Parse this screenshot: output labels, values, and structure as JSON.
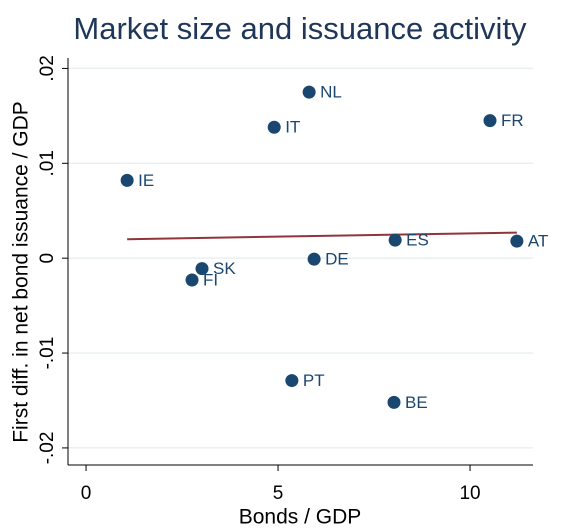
{
  "chart_data": {
    "type": "scatter",
    "title": "Market size and issuance activity",
    "x_label": "Bonds / GDP",
    "y_label": "First diff. in net bond issuance / GDP",
    "labels": [
      "NL",
      "IT",
      "FR",
      "IE",
      "ES",
      "AT",
      "DE",
      "SK",
      "FI",
      "PT",
      "BE"
    ],
    "x": [
      5.81,
      4.9,
      10.52,
      1.07,
      8.05,
      11.22,
      5.94,
      3.02,
      2.76,
      5.36,
      8.02
    ],
    "values": [
      0.0175,
      0.0138,
      0.0145,
      0.0082,
      0.0019,
      0.0018,
      -0.0001,
      -0.0011,
      -0.0023,
      -0.0129,
      -0.0152
    ],
    "color": "#1a476f",
    "fit": {
      "x": [
        1.07,
        11.22
      ],
      "values": [
        0.002,
        0.0027
      ],
      "color": "#90353b"
    },
    "xlim": [
      -0.47,
      11.64
    ],
    "ylim": [
      -0.0218,
      0.0211
    ],
    "xticks": [
      0,
      5,
      10
    ],
    "yticks": [
      {
        "value": -0.02,
        "label": "-.02"
      },
      {
        "value": -0.01,
        "label": "-.01"
      },
      0,
      {
        "value": 0.01,
        "label": ".01"
      },
      {
        "value": 0.02,
        "label": ".02"
      }
    ],
    "grid": true
  }
}
